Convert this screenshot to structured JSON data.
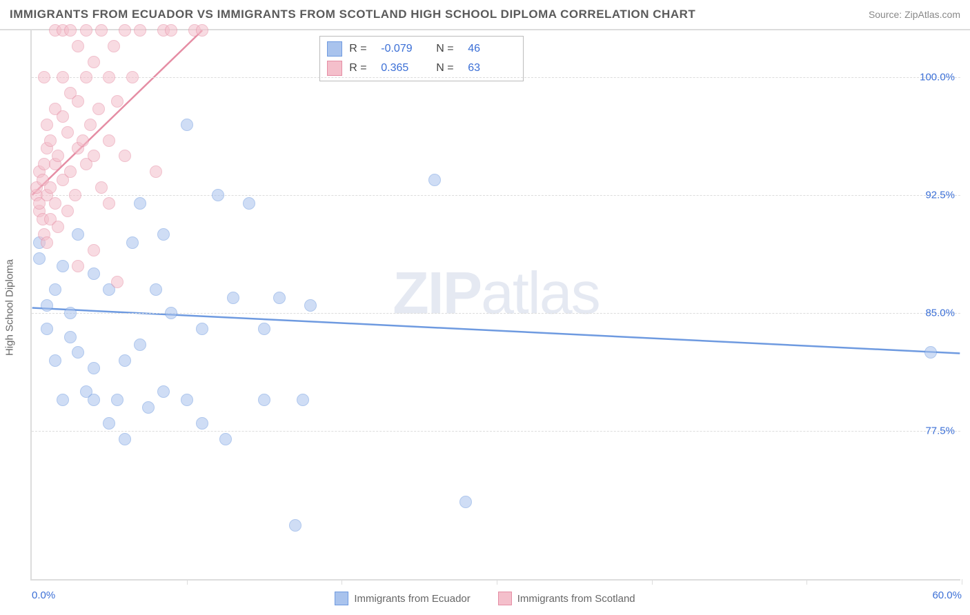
{
  "title": "IMMIGRANTS FROM ECUADOR VS IMMIGRANTS FROM SCOTLAND HIGH SCHOOL DIPLOMA CORRELATION CHART",
  "source_label": "Source: ",
  "source_value": "ZipAtlas.com",
  "chart": {
    "type": "scatter",
    "ylabel": "High School Diploma",
    "xlim": [
      0,
      60
    ],
    "ylim": [
      68,
      103
    ],
    "yticks": [
      77.5,
      85.0,
      92.5,
      100.0
    ],
    "ytick_labels": [
      "77.5%",
      "85.0%",
      "92.5%",
      "100.0%"
    ],
    "xticks": [
      0,
      20,
      40,
      60
    ],
    "xtick_labels": [
      "0.0%",
      "",
      "",
      "60.0%"
    ],
    "minor_xtick_count": 6,
    "background_color": "#ffffff",
    "grid_color": "#dcdcdc",
    "marker_radius": 9,
    "marker_opacity": 0.55,
    "series": [
      {
        "name": "Immigrants from Ecuador",
        "color": "#6e9ae0",
        "fill": "#a9c3ed",
        "R": "-0.079",
        "N": "46",
        "regression": {
          "x1": 0,
          "y1": 85.3,
          "x2": 60,
          "y2": 82.4
        },
        "points": [
          [
            0.5,
            89.5
          ],
          [
            0.5,
            88.5
          ],
          [
            1,
            85.5
          ],
          [
            1,
            84
          ],
          [
            1.5,
            86.5
          ],
          [
            1.5,
            82
          ],
          [
            2,
            79.5
          ],
          [
            2,
            88
          ],
          [
            2.5,
            83.5
          ],
          [
            2.5,
            85
          ],
          [
            3,
            90
          ],
          [
            3,
            82.5
          ],
          [
            3.5,
            80
          ],
          [
            4,
            79.5
          ],
          [
            4,
            81.5
          ],
          [
            4,
            87.5
          ],
          [
            5,
            78
          ],
          [
            5,
            86.5
          ],
          [
            5.5,
            79.5
          ],
          [
            6,
            82
          ],
          [
            6,
            77
          ],
          [
            6.5,
            89.5
          ],
          [
            7,
            83
          ],
          [
            7,
            92
          ],
          [
            7.5,
            79
          ],
          [
            8,
            86.5
          ],
          [
            8.5,
            80
          ],
          [
            8.5,
            90
          ],
          [
            9,
            85
          ],
          [
            10,
            97
          ],
          [
            10,
            79.5
          ],
          [
            11,
            78
          ],
          [
            11,
            84
          ],
          [
            12,
            92.5
          ],
          [
            12.5,
            77
          ],
          [
            13,
            86
          ],
          [
            14,
            92
          ],
          [
            15,
            84
          ],
          [
            15,
            79.5
          ],
          [
            16,
            86
          ],
          [
            17,
            71.5
          ],
          [
            17.5,
            79.5
          ],
          [
            18,
            85.5
          ],
          [
            26,
            93.5
          ],
          [
            28,
            73
          ],
          [
            58,
            82.5
          ]
        ]
      },
      {
        "name": "Immigrants from Scotland",
        "color": "#e58da4",
        "fill": "#f4bfcb",
        "R": "0.365",
        "N": "63",
        "regression": {
          "x1": 0,
          "y1": 92.5,
          "x2": 11,
          "y2": 103
        },
        "points": [
          [
            0.3,
            92.5
          ],
          [
            0.3,
            93
          ],
          [
            0.5,
            91.5
          ],
          [
            0.5,
            94
          ],
          [
            0.5,
            92
          ],
          [
            0.7,
            93.5
          ],
          [
            0.7,
            91
          ],
          [
            0.8,
            90
          ],
          [
            0.8,
            94.5
          ],
          [
            0.8,
            100
          ],
          [
            1,
            92.5
          ],
          [
            1,
            95.5
          ],
          [
            1,
            89.5
          ],
          [
            1,
            97
          ],
          [
            1.2,
            93
          ],
          [
            1.2,
            96
          ],
          [
            1.2,
            91
          ],
          [
            1.5,
            94.5
          ],
          [
            1.5,
            98
          ],
          [
            1.5,
            92
          ],
          [
            1.5,
            103
          ],
          [
            1.7,
            90.5
          ],
          [
            1.7,
            95
          ],
          [
            2,
            93.5
          ],
          [
            2,
            97.5
          ],
          [
            2,
            103
          ],
          [
            2,
            100
          ],
          [
            2.3,
            91.5
          ],
          [
            2.3,
            96.5
          ],
          [
            2.5,
            94
          ],
          [
            2.5,
            99
          ],
          [
            2.5,
            103
          ],
          [
            2.8,
            92.5
          ],
          [
            3,
            95.5
          ],
          [
            3,
            98.5
          ],
          [
            3,
            102
          ],
          [
            3,
            88
          ],
          [
            3.3,
            96
          ],
          [
            3.5,
            94.5
          ],
          [
            3.5,
            100
          ],
          [
            3.5,
            103
          ],
          [
            3.8,
            97
          ],
          [
            4,
            89
          ],
          [
            4,
            95
          ],
          [
            4,
            101
          ],
          [
            4.3,
            98
          ],
          [
            4.5,
            93
          ],
          [
            4.5,
            103
          ],
          [
            5,
            96
          ],
          [
            5,
            100
          ],
          [
            5,
            92
          ],
          [
            5.3,
            102
          ],
          [
            5.5,
            87
          ],
          [
            5.5,
            98.5
          ],
          [
            6,
            95
          ],
          [
            6,
            103
          ],
          [
            6.5,
            100
          ],
          [
            7,
            103
          ],
          [
            8,
            94
          ],
          [
            8.5,
            103
          ],
          [
            9,
            103
          ],
          [
            10.5,
            103
          ],
          [
            11,
            103
          ]
        ]
      }
    ]
  },
  "watermark": {
    "bold": "ZIP",
    "rest": "atlas"
  },
  "legend_bottom": [
    {
      "label": "Immigrants from Ecuador",
      "fill": "#a9c3ed",
      "border": "#6e9ae0"
    },
    {
      "label": "Immigrants from Scotland",
      "fill": "#f4bfcb",
      "border": "#e58da4"
    }
  ],
  "stat_labels": {
    "R": "R =",
    "N": "N ="
  }
}
